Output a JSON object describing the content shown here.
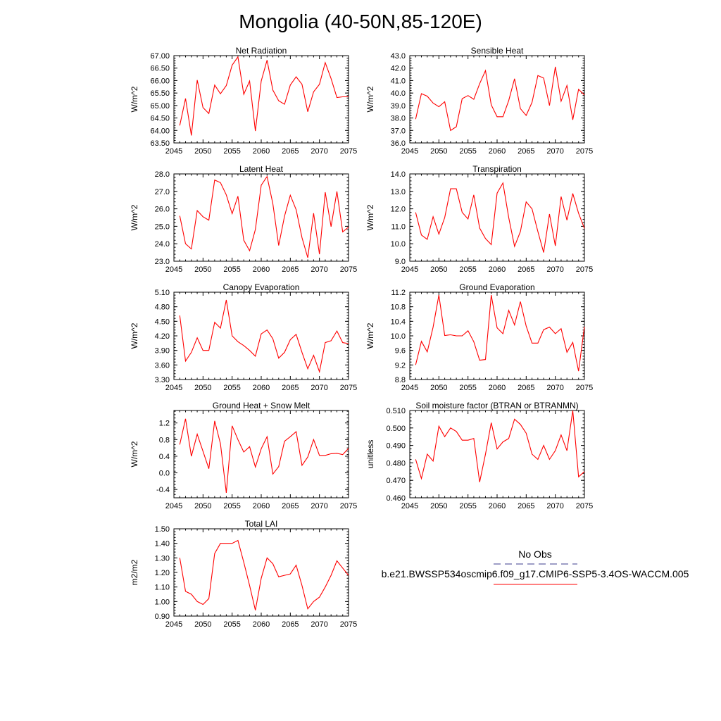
{
  "title": "Mongolia (40-50N,85-120E)",
  "colors": {
    "model_line": "#ff0000",
    "obs_line": "#3c3c8c",
    "axis": "#000000"
  },
  "legend": {
    "obs_label": "No Obs",
    "model_label": "b.e21.BWSSP534oscmip6.f09_g17.CMIP6-SSP5-3.4OS-WACCM.005"
  },
  "chart_data": [
    {
      "type": "line",
      "title": "Net Radiation",
      "ylabel": "W/m^2",
      "xlabel": "",
      "xlim": [
        2045,
        2075
      ],
      "ylim": [
        63.5,
        67.0
      ],
      "xticks": [
        2045,
        2050,
        2055,
        2060,
        2065,
        2070,
        2075
      ],
      "yticks": [
        63.5,
        64.0,
        64.5,
        65.0,
        65.5,
        66.0,
        66.5,
        67.0
      ],
      "ydec": 2,
      "x": [
        2046,
        2047,
        2048,
        2049,
        2050,
        2051,
        2052,
        2053,
        2054,
        2055,
        2056,
        2057,
        2058,
        2059,
        2060,
        2061,
        2062,
        2063,
        2064,
        2065,
        2066,
        2067,
        2068,
        2069,
        2070,
        2071,
        2072,
        2073,
        2074,
        2075
      ],
      "values": [
        64.2,
        65.28,
        63.8,
        66.02,
        64.92,
        64.68,
        65.82,
        65.47,
        65.8,
        66.62,
        66.95,
        65.45,
        65.98,
        63.98,
        65.98,
        66.82,
        65.62,
        65.19,
        65.05,
        65.82,
        66.15,
        65.85,
        64.75,
        65.55,
        65.85,
        66.72,
        66.08,
        65.32,
        65.35,
        65.35
      ],
      "series_name": "b.e21.BWSSP534oscmip6.f09_g17.CMIP6-SSP5-3.4OS-WACCM.005"
    },
    {
      "type": "line",
      "title": "Sensible Heat",
      "ylabel": "W/m^2",
      "xlabel": "",
      "xlim": [
        2045,
        2075
      ],
      "ylim": [
        36.0,
        43.0
      ],
      "xticks": [
        2045,
        2050,
        2055,
        2060,
        2065,
        2070,
        2075
      ],
      "yticks": [
        36.0,
        37.0,
        38.0,
        39.0,
        40.0,
        41.0,
        42.0,
        43.0
      ],
      "ydec": 1,
      "x": [
        2046,
        2047,
        2048,
        2049,
        2050,
        2051,
        2052,
        2053,
        2054,
        2055,
        2056,
        2057,
        2058,
        2059,
        2060,
        2061,
        2062,
        2063,
        2064,
        2065,
        2066,
        2067,
        2068,
        2069,
        2070,
        2071,
        2072,
        2073,
        2074,
        2075
      ],
      "values": [
        37.9,
        39.95,
        39.75,
        39.2,
        38.9,
        39.3,
        37.0,
        37.3,
        39.55,
        39.8,
        39.5,
        40.75,
        41.8,
        39.05,
        38.1,
        38.1,
        39.4,
        41.15,
        38.75,
        38.2,
        39.25,
        41.4,
        41.2,
        39.0,
        42.1,
        39.35,
        40.6,
        37.85,
        40.3,
        39.85
      ],
      "series_name": "b.e21.BWSSP534oscmip6.f09_g17.CMIP6-SSP5-3.4OS-WACCM.005"
    },
    {
      "type": "line",
      "title": "Latent Heat",
      "ylabel": "W/m^2",
      "xlabel": "",
      "xlim": [
        2045,
        2075
      ],
      "ylim": [
        23.0,
        28.0
      ],
      "xticks": [
        2045,
        2050,
        2055,
        2060,
        2065,
        2070,
        2075
      ],
      "yticks": [
        23.0,
        24.0,
        25.0,
        26.0,
        27.0,
        28.0
      ],
      "ydec": 1,
      "x": [
        2046,
        2047,
        2048,
        2049,
        2050,
        2051,
        2052,
        2053,
        2054,
        2055,
        2056,
        2057,
        2058,
        2059,
        2060,
        2061,
        2062,
        2063,
        2064,
        2065,
        2066,
        2067,
        2068,
        2069,
        2070,
        2071,
        2072,
        2073,
        2074,
        2075
      ],
      "values": [
        25.6,
        24.0,
        23.7,
        25.9,
        25.55,
        25.35,
        27.65,
        27.5,
        26.8,
        25.72,
        26.72,
        24.2,
        23.6,
        24.82,
        27.35,
        27.85,
        26.3,
        23.9,
        25.58,
        26.78,
        25.95,
        24.35,
        23.2,
        25.75,
        23.4,
        26.95,
        24.98,
        27.0,
        24.68,
        24.95
      ],
      "series_name": "b.e21.BWSSP534oscmip6.f09_g17.CMIP6-SSP5-3.4OS-WACCM.005"
    },
    {
      "type": "line",
      "title": "Transpiration",
      "ylabel": "W/m^2",
      "xlabel": "",
      "xlim": [
        2045,
        2075
      ],
      "ylim": [
        9.0,
        14.0
      ],
      "xticks": [
        2045,
        2050,
        2055,
        2060,
        2065,
        2070,
        2075
      ],
      "yticks": [
        9.0,
        10.0,
        11.0,
        12.0,
        13.0,
        14.0
      ],
      "ydec": 1,
      "x": [
        2046,
        2047,
        2048,
        2049,
        2050,
        2051,
        2052,
        2053,
        2054,
        2055,
        2056,
        2057,
        2058,
        2059,
        2060,
        2061,
        2062,
        2063,
        2064,
        2065,
        2066,
        2067,
        2068,
        2069,
        2070,
        2071,
        2072,
        2073,
        2074,
        2075
      ],
      "values": [
        11.8,
        10.5,
        10.25,
        11.55,
        10.55,
        11.5,
        13.15,
        13.15,
        11.8,
        11.42,
        12.8,
        10.9,
        10.3,
        9.95,
        12.9,
        13.48,
        11.5,
        9.85,
        10.7,
        12.4,
        12.0,
        10.7,
        9.5,
        11.7,
        9.88,
        12.7,
        11.35,
        12.88,
        11.75,
        10.88
      ],
      "series_name": "b.e21.BWSSP534oscmip6.f09_g17.CMIP6-SSP5-3.4OS-WACCM.005"
    },
    {
      "type": "line",
      "title": "Canopy Evaporation",
      "ylabel": "W/m^2",
      "xlabel": "",
      "xlim": [
        2045,
        2075
      ],
      "ylim": [
        3.3,
        5.1
      ],
      "xticks": [
        2045,
        2050,
        2055,
        2060,
        2065,
        2070,
        2075
      ],
      "yticks": [
        3.3,
        3.6,
        3.9,
        4.2,
        4.5,
        4.8,
        5.1
      ],
      "ydec": 2,
      "x": [
        2046,
        2047,
        2048,
        2049,
        2050,
        2051,
        2052,
        2053,
        2054,
        2055,
        2056,
        2057,
        2058,
        2059,
        2060,
        2061,
        2062,
        2063,
        2064,
        2065,
        2066,
        2067,
        2068,
        2069,
        2070,
        2071,
        2072,
        2073,
        2074,
        2075
      ],
      "values": [
        4.62,
        3.68,
        3.86,
        4.16,
        3.9,
        3.9,
        4.48,
        4.36,
        4.94,
        4.2,
        4.08,
        4.0,
        3.9,
        3.78,
        4.24,
        4.32,
        4.14,
        3.74,
        3.86,
        4.12,
        4.23,
        3.86,
        3.52,
        3.8,
        3.46,
        4.06,
        4.1,
        4.3,
        4.06,
        4.04
      ],
      "series_name": "b.e21.BWSSP534oscmip6.f09_g17.CMIP6-SSP5-3.4OS-WACCM.005"
    },
    {
      "type": "line",
      "title": "Ground Evaporation",
      "ylabel": "W/m^2",
      "xlabel": "",
      "xlim": [
        2045,
        2075
      ],
      "ylim": [
        8.8,
        11.2
      ],
      "xticks": [
        2045,
        2050,
        2055,
        2060,
        2065,
        2070,
        2075
      ],
      "yticks": [
        8.8,
        9.2,
        9.6,
        10.0,
        10.4,
        10.8,
        11.2
      ],
      "ydec": 1,
      "x": [
        2046,
        2047,
        2048,
        2049,
        2050,
        2051,
        2052,
        2053,
        2054,
        2055,
        2056,
        2057,
        2058,
        2059,
        2060,
        2061,
        2062,
        2063,
        2064,
        2065,
        2066,
        2067,
        2068,
        2069,
        2070,
        2071,
        2072,
        2073,
        2074,
        2075
      ],
      "values": [
        9.2,
        9.85,
        9.56,
        10.24,
        11.12,
        10.01,
        10.03,
        10.0,
        10.0,
        10.14,
        9.84,
        9.33,
        9.35,
        11.12,
        10.22,
        10.06,
        10.7,
        10.3,
        10.94,
        10.27,
        9.8,
        9.8,
        10.17,
        10.24,
        10.06,
        10.2,
        9.55,
        9.82,
        9.03,
        10.25
      ],
      "series_name": "b.e21.BWSSP534oscmip6.f09_g17.CMIP6-SSP5-3.4OS-WACCM.005"
    },
    {
      "type": "line",
      "title": "Ground Heat + Snow Melt",
      "ylabel": "W/m^2",
      "xlabel": "",
      "xlim": [
        2045,
        2075
      ],
      "ylim": [
        -0.6,
        1.5
      ],
      "xticks": [
        2045,
        2050,
        2055,
        2060,
        2065,
        2070,
        2075
      ],
      "yticks": [
        -0.4,
        0.0,
        0.4,
        0.8,
        1.2
      ],
      "ydec": 1,
      "x": [
        2046,
        2047,
        2048,
        2049,
        2050,
        2051,
        2052,
        2053,
        2054,
        2055,
        2056,
        2057,
        2058,
        2059,
        2060,
        2061,
        2062,
        2063,
        2064,
        2065,
        2066,
        2067,
        2068,
        2069,
        2070,
        2071,
        2072,
        2073,
        2074,
        2075
      ],
      "values": [
        0.68,
        1.3,
        0.4,
        0.93,
        0.52,
        0.1,
        1.25,
        0.7,
        -0.48,
        1.13,
        0.8,
        0.5,
        0.63,
        0.14,
        0.58,
        0.87,
        -0.03,
        0.15,
        0.76,
        0.87,
        0.99,
        0.18,
        0.38,
        0.8,
        0.42,
        0.42,
        0.46,
        0.47,
        0.44,
        0.59
      ],
      "series_name": "b.e21.BWSSP534oscmip6.f09_g17.CMIP6-SSP5-3.4OS-WACCM.005"
    },
    {
      "type": "line",
      "title": "Soil moisture factor (BTRAN or BTRANMN)",
      "ylabel": "unitless",
      "xlabel": "",
      "xlim": [
        2045,
        2075
      ],
      "ylim": [
        0.46,
        0.51
      ],
      "xticks": [
        2045,
        2050,
        2055,
        2060,
        2065,
        2070,
        2075
      ],
      "yticks": [
        0.46,
        0.47,
        0.48,
        0.49,
        0.5,
        0.51
      ],
      "ydec": 3,
      "x": [
        2046,
        2047,
        2048,
        2049,
        2050,
        2051,
        2052,
        2053,
        2054,
        2055,
        2056,
        2057,
        2058,
        2059,
        2060,
        2061,
        2062,
        2063,
        2064,
        2065,
        2066,
        2067,
        2068,
        2069,
        2070,
        2071,
        2072,
        2073,
        2074,
        2075
      ],
      "values": [
        0.482,
        0.471,
        0.485,
        0.481,
        0.501,
        0.495,
        0.5,
        0.498,
        0.493,
        0.493,
        0.494,
        0.469,
        0.485,
        0.503,
        0.488,
        0.492,
        0.494,
        0.505,
        0.502,
        0.497,
        0.485,
        0.482,
        0.49,
        0.482,
        0.487,
        0.496,
        0.487,
        0.51,
        0.472,
        0.475
      ],
      "series_name": "b.e21.BWSSP534oscmip6.f09_g17.CMIP6-SSP5-3.4OS-WACCM.005"
    },
    {
      "type": "line",
      "title": "Total LAI",
      "ylabel": "m2/m2",
      "xlabel": "",
      "xlim": [
        2045,
        2075
      ],
      "ylim": [
        0.9,
        1.5
      ],
      "xticks": [
        2045,
        2050,
        2055,
        2060,
        2065,
        2070,
        2075
      ],
      "yticks": [
        0.9,
        1.0,
        1.1,
        1.2,
        1.3,
        1.4,
        1.5
      ],
      "ydec": 2,
      "x": [
        2046,
        2047,
        2048,
        2049,
        2050,
        2051,
        2052,
        2053,
        2054,
        2055,
        2056,
        2057,
        2058,
        2059,
        2060,
        2061,
        2062,
        2063,
        2064,
        2065,
        2066,
        2067,
        2068,
        2069,
        2070,
        2071,
        2072,
        2073,
        2074,
        2075
      ],
      "values": [
        1.3,
        1.07,
        1.05,
        1.0,
        0.98,
        1.02,
        1.33,
        1.4,
        1.4,
        1.4,
        1.42,
        1.27,
        1.11,
        0.94,
        1.16,
        1.3,
        1.26,
        1.17,
        1.18,
        1.19,
        1.25,
        1.11,
        0.95,
        1.0,
        1.03,
        1.1,
        1.18,
        1.28,
        1.23,
        1.18
      ],
      "series_name": "b.e21.BWSSP534oscmip6.f09_g17.CMIP6-SSP5-3.4OS-WACCM.005"
    }
  ]
}
